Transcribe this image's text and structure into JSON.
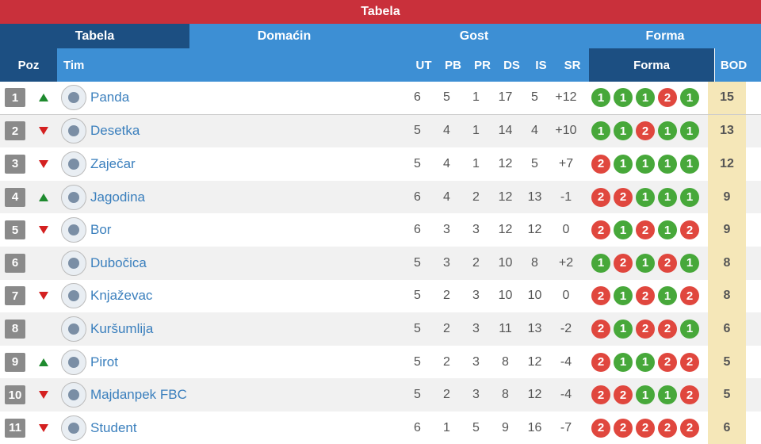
{
  "window": {
    "title": "Tabela"
  },
  "tabs": [
    {
      "label": "Tabela"
    },
    {
      "label": "Domaćin"
    },
    {
      "label": "Gost"
    },
    {
      "label": "Forma"
    }
  ],
  "columns": {
    "poz": "Poz",
    "tim": "Tim",
    "ut": "UT",
    "pb": "PB",
    "pr": "PR",
    "ds": "DS",
    "is": "IS",
    "sr": "SR",
    "forma": "Forma",
    "bod": "BOD"
  },
  "colors": {
    "win": "#47a83a",
    "loss": "#e0473e",
    "header": "#3d8fd4",
    "header_dark": "#1c4f82",
    "title": "#c9303b"
  },
  "rows": [
    {
      "pos": "1",
      "trend": "up",
      "team": "Panda",
      "ut": "6",
      "pb": "5",
      "pr": "1",
      "ds": "17",
      "is": "5",
      "sr": "+12",
      "form": [
        "1",
        "1",
        "1",
        "2",
        "1"
      ],
      "bod": "15"
    },
    {
      "pos": "2",
      "trend": "down",
      "team": "Desetka",
      "ut": "5",
      "pb": "4",
      "pr": "1",
      "ds": "14",
      "is": "4",
      "sr": "+10",
      "form": [
        "1",
        "1",
        "2",
        "1",
        "1"
      ],
      "bod": "13"
    },
    {
      "pos": "3",
      "trend": "down",
      "team": "Zaječar",
      "ut": "5",
      "pb": "4",
      "pr": "1",
      "ds": "12",
      "is": "5",
      "sr": "+7",
      "form": [
        "2",
        "1",
        "1",
        "1",
        "1"
      ],
      "bod": "12"
    },
    {
      "pos": "4",
      "trend": "up",
      "team": "Jagodina",
      "ut": "6",
      "pb": "4",
      "pr": "2",
      "ds": "12",
      "is": "13",
      "sr": "-1",
      "form": [
        "2",
        "2",
        "1",
        "1",
        "1"
      ],
      "bod": "9"
    },
    {
      "pos": "5",
      "trend": "down",
      "team": "Bor",
      "ut": "6",
      "pb": "3",
      "pr": "3",
      "ds": "12",
      "is": "12",
      "sr": "0",
      "form": [
        "2",
        "1",
        "2",
        "1",
        "2"
      ],
      "bod": "9"
    },
    {
      "pos": "6",
      "trend": "none",
      "team": "Dubočica",
      "ut": "5",
      "pb": "3",
      "pr": "2",
      "ds": "10",
      "is": "8",
      "sr": "+2",
      "form": [
        "1",
        "2",
        "1",
        "2",
        "1"
      ],
      "bod": "8"
    },
    {
      "pos": "7",
      "trend": "down",
      "team": "Knjaževac",
      "ut": "5",
      "pb": "2",
      "pr": "3",
      "ds": "10",
      "is": "10",
      "sr": "0",
      "form": [
        "2",
        "1",
        "2",
        "1",
        "2"
      ],
      "bod": "8"
    },
    {
      "pos": "8",
      "trend": "none",
      "team": "Kuršumlija",
      "ut": "5",
      "pb": "2",
      "pr": "3",
      "ds": "11",
      "is": "13",
      "sr": "-2",
      "form": [
        "2",
        "1",
        "2",
        "2",
        "1"
      ],
      "bod": "6"
    },
    {
      "pos": "9",
      "trend": "up",
      "team": "Pirot",
      "ut": "5",
      "pb": "2",
      "pr": "3",
      "ds": "8",
      "is": "12",
      "sr": "-4",
      "form": [
        "2",
        "1",
        "1",
        "2",
        "2"
      ],
      "bod": "5"
    },
    {
      "pos": "10",
      "trend": "down",
      "team": "Majdanpek FBC",
      "ut": "5",
      "pb": "2",
      "pr": "3",
      "ds": "8",
      "is": "12",
      "sr": "-4",
      "form": [
        "2",
        "2",
        "1",
        "1",
        "2"
      ],
      "bod": "5"
    },
    {
      "pos": "11",
      "trend": "down",
      "team": "Student",
      "ut": "6",
      "pb": "1",
      "pr": "5",
      "ds": "9",
      "is": "16",
      "sr": "-7",
      "form": [
        "2",
        "2",
        "2",
        "2",
        "2"
      ],
      "bod": "6"
    }
  ]
}
